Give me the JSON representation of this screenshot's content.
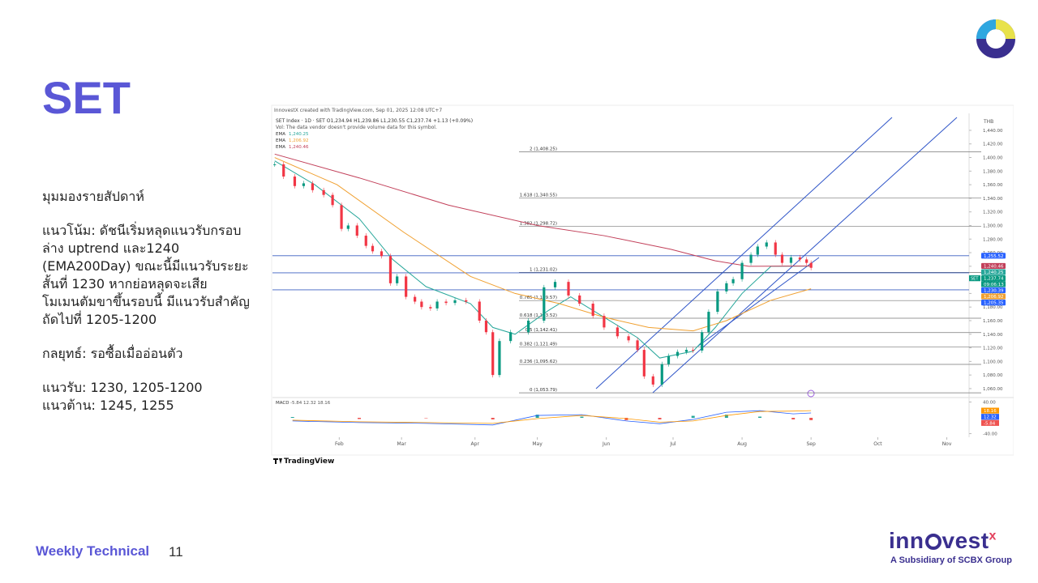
{
  "slide": {
    "title": "SET",
    "heading": "มุมมองรายสัปดาห์",
    "paragraphs": [
      "แนวโน้ม: ดัชนีเริ่มหลุดแนวรับกรอบล่าง uptrend และ1240 (EMA200Day) ขณะนี้มีแนวรับระยะสั้นที่ 1230 หากย่อหลุดจะเสียโมเมนตัมขาขึ้นรอบนี้ มีแนวรับสำคัญถัดไปที่ 1205-1200",
      "กลยุทธ์: รอซื้อเมื่ออ่อนตัว",
      "แนวรับ: 1230, 1205-1200",
      "แนวต้าน: 1245, 1255"
    ],
    "footer": "Weekly Technical",
    "page": "11",
    "brand_start": "inn",
    "brand_end": "vest",
    "brand_mark": "x",
    "brand_sub": "A Subsidiary of SCBX Group"
  },
  "chart_data": {
    "type": "candlestick",
    "credit": "InnovestX created with TradingView.com, Sep 01, 2025 12:08 UTC+7",
    "header": "SET Index · 1D · SET  O1,234.94 H1,239.86 L1,230.55 C1,237.74 +1.13 (+0.09%)",
    "volume_note": "Vol: The data vendor doesn't provide volume data for this symbol.",
    "currency": "THB",
    "watermark": "TradingView",
    "x": [
      2,
      6,
      11,
      15,
      19,
      24,
      28,
      32,
      35,
      39,
      43,
      46,
      50,
      54,
      57,
      61,
      65,
      68,
      72,
      75,
      79,
      83,
      88,
      94,
      97,
      100,
      103,
      108,
      116,
      123,
      128,
      134,
      139,
      145,
      150,
      156,
      161,
      165,
      168,
      172,
      176,
      179,
      183,
      187,
      190,
      194,
      197,
      201,
      205,
      208,
      212,
      216,
      219,
      223,
      227,
      230,
      234,
      238,
      241,
      243
    ],
    "close": [
      1390,
      1372,
      1358,
      1362,
      1352,
      1345,
      1330,
      1295,
      1300,
      1285,
      1270,
      1262,
      1255,
      1215,
      1225,
      1195,
      1188,
      1180,
      1178,
      1188,
      1186,
      1190,
      1188,
      1160,
      1143,
      1080,
      1130,
      1143,
      1160,
      1209,
      1217,
      1197,
      1185,
      1167,
      1150,
      1137,
      1131,
      1117,
      1078,
      1066,
      1096,
      1108,
      1114,
      1117,
      1116,
      1143,
      1173,
      1203,
      1215,
      1221,
      1245,
      1257,
      1269,
      1275,
      1257,
      1245,
      1253,
      1250,
      1245,
      1237.74
    ],
    "up_color": "#089981",
    "down_color": "#f23645",
    "series": [
      {
        "name": "EMA",
        "legend_value": "1,240.25",
        "color": "#26a69a",
        "x": [
          2,
          20,
          40,
          55,
          70,
          90,
          100,
          110,
          125,
          135,
          150,
          165,
          175,
          190,
          200,
          212,
          225,
          243
        ],
        "values": [
          1395,
          1360,
          1310,
          1250,
          1210,
          1185,
          1150,
          1140,
          1175,
          1195,
          1165,
          1135,
          1105,
          1115,
          1150,
          1200,
          1240,
          1240.25
        ]
      },
      {
        "name": "EMA",
        "legend_value": "1,206.92",
        "color": "#f0a030",
        "x": [
          2,
          30,
          60,
          90,
          110,
          130,
          150,
          170,
          190,
          205,
          225,
          243
        ],
        "values": [
          1400,
          1360,
          1290,
          1225,
          1200,
          1185,
          1165,
          1150,
          1145,
          1160,
          1190,
          1206.92
        ]
      },
      {
        "name": "EMA",
        "legend_value": "1,240.46",
        "color": "#c2405a",
        "x": [
          2,
          40,
          80,
          120,
          150,
          180,
          200,
          215,
          243
        ],
        "values": [
          1405,
          1370,
          1330,
          1300,
          1285,
          1265,
          1248,
          1240,
          1240.46
        ]
      }
    ],
    "fib": [
      {
        "label": "2 (1,408.25)",
        "value": 1408.25
      },
      {
        "label": "1.618 (1,340.55)",
        "value": 1340.55
      },
      {
        "label": "1.382 (1,298.72)",
        "value": 1298.72
      },
      {
        "label": "1 (1,231.02)",
        "value": 1231.02
      },
      {
        "label": "0.765 (1,189.57)",
        "value": 1189.57
      },
      {
        "label": "0.618 (1,163.52)",
        "value": 1163.52
      },
      {
        "label": "0.5 (1,142.41)",
        "value": 1142.41
      },
      {
        "label": "0.382 (1,121.49)",
        "value": 1121.49
      },
      {
        "label": "0.236 (1,095.62)",
        "value": 1095.62
      },
      {
        "label": "0 (1,053.79)",
        "value": 1053.79
      }
    ],
    "price_labels": [
      {
        "value": 1255.52,
        "label": "1,255.52",
        "color": "#2962ff",
        "hline": true
      },
      {
        "value": 1240.46,
        "label": "1,240.46",
        "color": "#c2405a"
      },
      {
        "value": 1240.25,
        "label": "1,240.25",
        "color": "#26a69a"
      },
      {
        "value": 1237.74,
        "label": "1,237.74",
        "color": "#089981"
      },
      {
        "value": 1230.39,
        "label": "1,230.39",
        "color": "#2962ff",
        "hline": true
      },
      {
        "value": 1206.92,
        "label": "1,206.92",
        "color": "#f0a030"
      },
      {
        "value": 1205.35,
        "label": "1,205.35",
        "color": "#2962ff",
        "hline": true
      }
    ],
    "symbol_tag": "SET",
    "countdown": "09:06:13",
    "xlim": [
      1,
      314
    ],
    "xticks": [
      {
        "value": 31,
        "label": "Feb"
      },
      {
        "value": 59,
        "label": "Mar"
      },
      {
        "value": 92,
        "label": "Apr"
      },
      {
        "value": 120,
        "label": "May"
      },
      {
        "value": 151,
        "label": "Jun"
      },
      {
        "value": 181,
        "label": "Jul"
      },
      {
        "value": 212,
        "label": "Aug"
      },
      {
        "value": 243,
        "label": "Sep"
      },
      {
        "value": 273,
        "label": "Oct"
      },
      {
        "value": 304,
        "label": "Nov"
      }
    ],
    "ylim": [
      1048,
      1459
    ],
    "yticks": [
      {
        "value": 1060,
        "label": "1,060.00"
      },
      {
        "value": 1080,
        "label": "1,080.00"
      },
      {
        "value": 1100,
        "label": "1,100.00"
      },
      {
        "value": 1120,
        "label": "1,120.00"
      },
      {
        "value": 1140,
        "label": "1,140.00"
      },
      {
        "value": 1160,
        "label": "1,160.00"
      },
      {
        "value": 1180,
        "label": "1,180.00"
      },
      {
        "value": 1200,
        "label": "1,200.00"
      },
      {
        "value": 1220,
        "label": "1,220.00"
      },
      {
        "value": 1240,
        "label": "1,240.00"
      },
      {
        "value": 1260,
        "label": "1,260.00"
      },
      {
        "value": 1280,
        "label": "1,280.00"
      },
      {
        "value": 1300,
        "label": "1,300.00"
      },
      {
        "value": 1320,
        "label": "1,320.00"
      },
      {
        "value": 1340,
        "label": "1,340.00"
      },
      {
        "value": 1360,
        "label": "1,360.00"
      },
      {
        "value": 1380,
        "label": "1,380.00"
      },
      {
        "value": 1400,
        "label": "1,400.00"
      },
      {
        "value": 1420,
        "label": "1,420.00"
      },
      {
        "value": 1440,
        "label": "1,440.00"
      }
    ],
    "macd": {
      "name": "MACD",
      "header_values": "-5.84  12.32  18.16",
      "x": [
        10,
        40,
        70,
        100,
        120,
        140,
        160,
        175,
        190,
        205,
        220,
        235,
        243
      ],
      "macd": [
        -8,
        -12,
        -14,
        -18,
        6,
        8,
        -8,
        -15,
        -4,
        14,
        18,
        10,
        12.32
      ],
      "signal": [
        -6,
        -10,
        -12,
        -14,
        -2,
        6,
        -2,
        -11,
        -8,
        6,
        16,
        17,
        18.16
      ],
      "hist": [
        2,
        -3,
        -1,
        -4,
        8,
        3,
        -6,
        -4,
        5,
        8,
        3,
        -4,
        -5.84
      ],
      "macd_color": "#2962ff",
      "signal_color": "#ff9800",
      "hist_up_color": "#26a69a",
      "hist_down_color": "#ef5350",
      "last_labels": [
        {
          "value": 18.16,
          "label": "18.16",
          "color": "#ff9800"
        },
        {
          "value": 12.32,
          "label": "12.32",
          "color": "#2962ff"
        },
        {
          "value": -5.84,
          "label": "-5.84",
          "color": "#ef5350"
        }
      ],
      "ylim": [
        -45,
        45
      ],
      "yticks": [
        {
          "value": 40,
          "label": "40.00"
        },
        {
          "value": -40,
          "label": "-40.00"
        }
      ]
    }
  }
}
